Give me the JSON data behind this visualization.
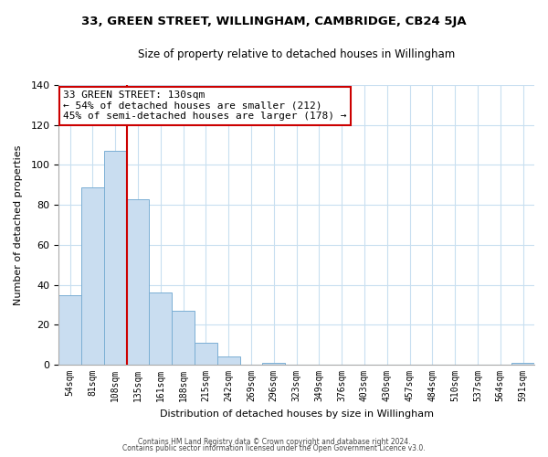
{
  "title1": "33, GREEN STREET, WILLINGHAM, CAMBRIDGE, CB24 5JA",
  "title2": "Size of property relative to detached houses in Willingham",
  "xlabel": "Distribution of detached houses by size in Willingham",
  "ylabel": "Number of detached properties",
  "bar_labels": [
    "54sqm",
    "81sqm",
    "108sqm",
    "135sqm",
    "161sqm",
    "188sqm",
    "215sqm",
    "242sqm",
    "269sqm",
    "296sqm",
    "323sqm",
    "349sqm",
    "376sqm",
    "403sqm",
    "430sqm",
    "457sqm",
    "484sqm",
    "510sqm",
    "537sqm",
    "564sqm",
    "591sqm"
  ],
  "bar_heights": [
    35,
    89,
    107,
    83,
    36,
    27,
    11,
    4,
    0,
    1,
    0,
    0,
    0,
    0,
    0,
    0,
    0,
    0,
    0,
    0,
    1
  ],
  "bar_color": "#c9ddf0",
  "bar_edge_color": "#7bafd4",
  "vline_x": 3,
  "vline_color": "#cc0000",
  "ylim": [
    0,
    140
  ],
  "yticks": [
    0,
    20,
    40,
    60,
    80,
    100,
    120,
    140
  ],
  "annotation_title": "33 GREEN STREET: 130sqm",
  "annotation_line1": "← 54% of detached houses are smaller (212)",
  "annotation_line2": "45% of semi-detached houses are larger (178) →",
  "annotation_box_color": "#ffffff",
  "annotation_box_edge": "#cc0000",
  "footer1": "Contains HM Land Registry data © Crown copyright and database right 2024.",
  "footer2": "Contains public sector information licensed under the Open Government Licence v3.0.",
  "background_color": "#ffffff",
  "grid_color": "#c8dff0"
}
